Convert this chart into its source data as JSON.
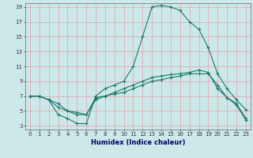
{
  "title": "",
  "xlabel": "Humidex (Indice chaleur)",
  "bg_color": "#cce8e8",
  "grid_color": "#e8a0a8",
  "line_color": "#1a7a6a",
  "xlim": [
    -0.5,
    23.5
  ],
  "ylim": [
    2.5,
    19.5
  ],
  "xticks": [
    0,
    1,
    2,
    3,
    4,
    5,
    6,
    7,
    8,
    9,
    10,
    11,
    12,
    13,
    14,
    15,
    16,
    17,
    18,
    19,
    20,
    21,
    22,
    23
  ],
  "yticks": [
    3,
    5,
    7,
    9,
    11,
    13,
    15,
    17,
    19
  ],
  "line1_x": [
    0,
    1,
    2,
    3,
    4,
    5,
    6,
    7,
    8,
    9,
    10,
    11,
    12,
    13,
    14,
    15,
    16,
    17,
    18,
    19,
    20,
    21,
    22,
    23
  ],
  "line1_y": [
    7,
    7,
    6.5,
    4.5,
    4,
    3.3,
    3.3,
    7,
    8,
    8.5,
    9,
    11,
    15,
    19,
    19.2,
    19,
    18.5,
    17,
    16,
    13.5,
    10,
    8,
    6.5,
    5.2
  ],
  "line2_x": [
    0,
    1,
    2,
    3,
    4,
    5,
    6,
    7,
    8,
    9,
    10,
    11,
    12,
    13,
    14,
    15,
    16,
    17,
    18,
    19,
    20,
    21,
    22,
    23
  ],
  "line2_y": [
    7,
    7,
    6.5,
    6,
    5,
    4.5,
    4.5,
    6.5,
    7,
    7.5,
    8,
    8.5,
    9,
    9.5,
    9.7,
    9.9,
    10,
    10.2,
    10.5,
    10.2,
    8,
    6.8,
    5.8,
    3.8
  ],
  "line3_x": [
    0,
    1,
    2,
    3,
    4,
    5,
    6,
    7,
    8,
    9,
    10,
    11,
    12,
    13,
    14,
    15,
    16,
    17,
    18,
    19,
    20,
    21,
    22,
    23
  ],
  "line3_y": [
    7,
    7,
    6.5,
    5.5,
    5,
    4.8,
    4.5,
    6.8,
    7,
    7.3,
    7.5,
    8,
    8.5,
    9,
    9.2,
    9.5,
    9.7,
    10,
    10,
    10,
    8.5,
    6.8,
    6,
    4
  ]
}
